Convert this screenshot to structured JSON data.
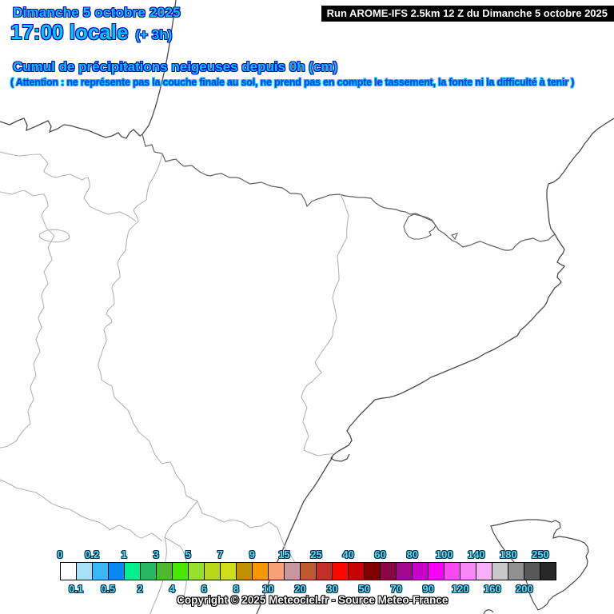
{
  "header": {
    "date": "Dimanche 5 octobre 2025",
    "time": "17:00 locale",
    "offset": "(+ 3h)",
    "run": "Run AROME-IFS 2.5km 12 Z du Dimanche 5 octobre 2025",
    "title": "Cumul de précipitations neigeuses depuis 0h (cm)",
    "warning": "( Attention : ne représente pas la couche finale au sol, ne prend pas en compte le tassement, la fonte ni la difficulté à tenir )"
  },
  "legend": {
    "top_labels": [
      "0",
      "0.2",
      "1",
      "3",
      "5",
      "7",
      "9",
      "15",
      "25",
      "40",
      "60",
      "80",
      "100",
      "140",
      "180",
      "250"
    ],
    "bottom_labels": [
      "0.1",
      "0.5",
      "2",
      "4",
      "6",
      "8",
      "10",
      "20",
      "30",
      "50",
      "70",
      "90",
      "120",
      "160",
      "200"
    ],
    "colors": [
      "#ffffff",
      "#a8e0f8",
      "#38b8f8",
      "#0888f0",
      "#00f090",
      "#28b860",
      "#50b830",
      "#48e800",
      "#98e030",
      "#b8d818",
      "#d0e018",
      "#c09000",
      "#f89800",
      "#f8a078",
      "#c898a0",
      "#c05830",
      "#c03028",
      "#f80800",
      "#c80000",
      "#800000",
      "#880845",
      "#a00890",
      "#c800c8",
      "#f800f8",
      "#f848f0",
      "#f888f8",
      "#f8b0f8",
      "#c8c8c8",
      "#909090",
      "#585858",
      "#282828"
    ]
  },
  "footer": {
    "copyright": "Copyright © 2025 Meteociel.fr - Source Meteo-France"
  },
  "colors": {
    "accent_cyan": "#00c8ff",
    "outline_blue": "#0000c8",
    "warning_fill": "#0033e8",
    "legend_label": "#55ddff",
    "legend_label_outline": "#002b3a",
    "run_bg": "#000000",
    "run_fg": "#ffffff",
    "coast_line": "#4a4a4a",
    "border_line": "#606060",
    "region_line": "#b4b4b4"
  }
}
